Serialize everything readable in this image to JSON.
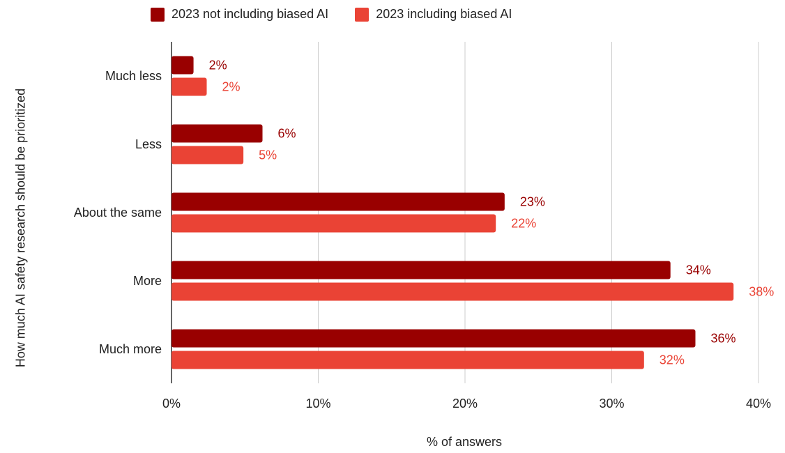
{
  "chart_data": {
    "type": "bar",
    "orientation": "horizontal",
    "categories": [
      "Much less",
      "Less",
      "About the same",
      "More",
      "Much more"
    ],
    "series": [
      {
        "name": "2023 not including biased AI",
        "values": [
          1.5,
          6.2,
          22.7,
          34.0,
          35.7
        ],
        "labels": [
          "2%",
          "6%",
          "23%",
          "34%",
          "36%"
        ],
        "color": "#990000"
      },
      {
        "name": "2023 including biased AI",
        "values": [
          2.4,
          4.9,
          22.1,
          38.3,
          32.2
        ],
        "labels": [
          "2%",
          "5%",
          "22%",
          "38%",
          "32%"
        ],
        "color": "#EA4335"
      }
    ],
    "xlabel": "% of answers",
    "ylabel": "How much AI safety research should be prioritized",
    "xlim": [
      0,
      40
    ],
    "xticks": [
      0,
      10,
      20,
      30,
      40
    ],
    "xtick_labels": [
      "0%",
      "10%",
      "20%",
      "30%",
      "40%"
    ],
    "grid": true,
    "legend_position": "top"
  }
}
